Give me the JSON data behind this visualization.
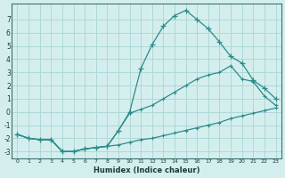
{
  "xlabel": "Humidex (Indice chaleur)",
  "x": [
    0,
    1,
    2,
    3,
    4,
    5,
    6,
    7,
    8,
    9,
    10,
    11,
    12,
    13,
    14,
    15,
    16,
    17,
    18,
    19,
    20,
    21,
    22,
    23
  ],
  "line1": [
    -1.7,
    -2.0,
    -2.1,
    -2.1,
    -3.0,
    -3.0,
    -2.8,
    -2.7,
    -2.6,
    -2.5,
    -2.3,
    -2.1,
    -2.0,
    -1.8,
    -1.6,
    -1.4,
    -1.2,
    -1.0,
    -0.8,
    -0.5,
    -0.3,
    -0.1,
    0.1,
    0.3
  ],
  "line2": [
    -1.7,
    -2.0,
    -2.1,
    -2.1,
    -3.0,
    -3.0,
    -2.8,
    -2.7,
    -2.6,
    -1.4,
    -0.1,
    0.2,
    0.5,
    1.0,
    1.5,
    2.0,
    2.5,
    2.8,
    3.0,
    3.5,
    2.5,
    2.3,
    1.2,
    0.5
  ],
  "line3": [
    -1.7,
    -2.0,
    -2.1,
    -2.1,
    -3.0,
    -3.0,
    -2.8,
    -2.7,
    -2.6,
    -1.4,
    0.0,
    3.3,
    5.1,
    6.5,
    7.3,
    7.7,
    7.0,
    6.3,
    5.3,
    4.2,
    3.7,
    2.4,
    1.8,
    1.0
  ],
  "line_color": "#2d8b8b",
  "bg_color": "#d4eeee",
  "grid_color": "#aed8d8",
  "ylim": [
    -3.5,
    8.2
  ],
  "yticks": [
    -3,
    -2,
    -1,
    0,
    1,
    2,
    3,
    4,
    5,
    6,
    7
  ],
  "xlim": [
    -0.5,
    23.5
  ],
  "xticks": [
    0,
    1,
    2,
    3,
    4,
    5,
    6,
    7,
    8,
    9,
    10,
    11,
    12,
    13,
    14,
    15,
    16,
    17,
    18,
    19,
    20,
    21,
    22,
    23
  ]
}
